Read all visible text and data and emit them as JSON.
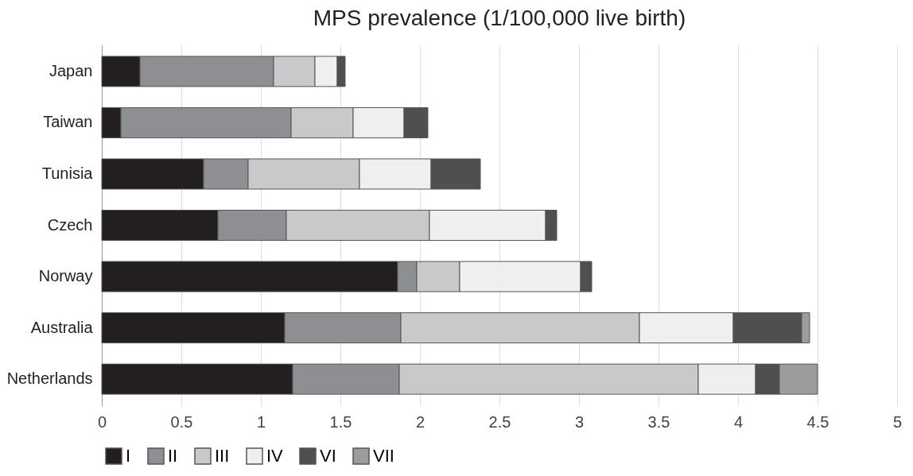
{
  "chart_data": {
    "type": "bar",
    "orientation": "horizontal",
    "stacked": true,
    "title": "MPS prevalence (1/100,000 live birth)",
    "categories": [
      "Japan",
      "Taiwan",
      "Tunisia",
      "Czech",
      "Norway",
      "Australia",
      "Netherlands"
    ],
    "series": [
      {
        "name": "I",
        "color": "#231f20",
        "values": [
          0.24,
          0.12,
          0.64,
          0.73,
          1.86,
          1.15,
          1.2
        ]
      },
      {
        "name": "II",
        "color": "#8e8f92",
        "values": [
          0.84,
          1.07,
          0.28,
          0.43,
          0.12,
          0.73,
          0.67
        ]
      },
      {
        "name": "III",
        "color": "#c8c9cb",
        "values": [
          0.26,
          0.39,
          0.7,
          0.9,
          0.27,
          1.5,
          1.88
        ]
      },
      {
        "name": "IV",
        "color": "#efefef",
        "values": [
          0.14,
          0.32,
          0.45,
          0.73,
          0.76,
          0.59,
          0.36
        ]
      },
      {
        "name": "VI",
        "color": "#4f4f4f",
        "values": [
          0.05,
          0.15,
          0.31,
          0.07,
          0.07,
          0.43,
          0.15
        ]
      },
      {
        "name": "VII",
        "color": "#9c9c9c",
        "values": [
          null,
          null,
          null,
          null,
          null,
          0.05,
          0.24
        ]
      }
    ],
    "xlim": [
      0,
      5
    ],
    "xticks": [
      0,
      0.5,
      1,
      1.5,
      2,
      2.5,
      3,
      3.5,
      4,
      4.5,
      5
    ],
    "grid": "x",
    "legend": "bottom"
  }
}
